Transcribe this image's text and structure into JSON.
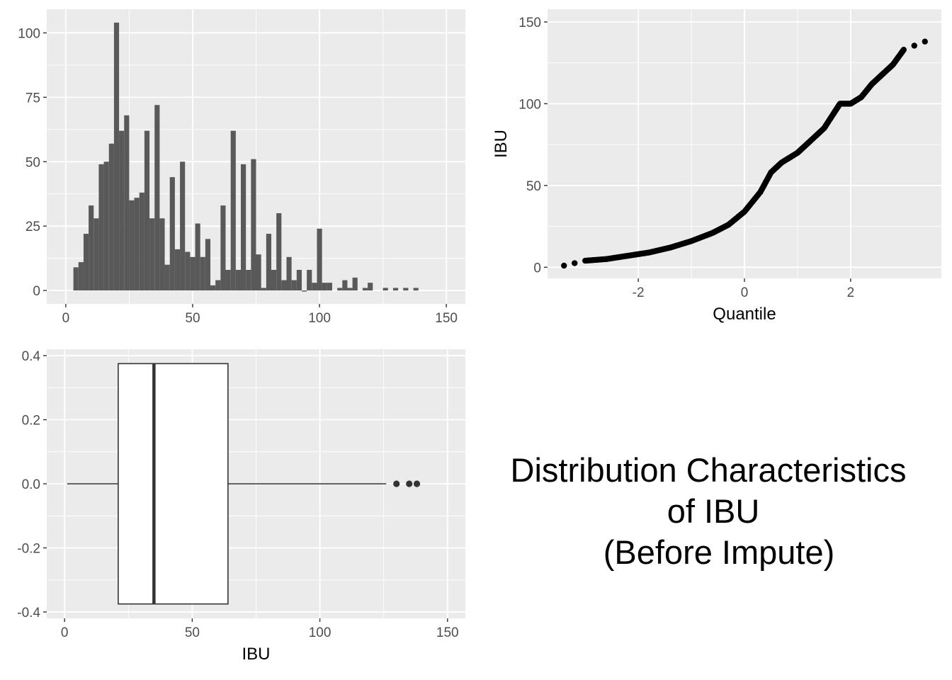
{
  "title_lines": [
    "Distribution Characteristics",
    "of IBU",
    "(Before Impute)"
  ],
  "colors": {
    "panel_bg": "#ebebeb",
    "grid": "#ffffff",
    "bar": "#595959",
    "point": "#000000",
    "tick_text": "#4d4d4d"
  },
  "chart_data": [
    {
      "type": "bar",
      "subtype": "histogram",
      "xlabel": "",
      "ylabel": "",
      "xlim": [
        -7.5,
        157.5
      ],
      "ylim": [
        -5.2,
        109.2
      ],
      "xticks": [
        0,
        50,
        100,
        150
      ],
      "yticks": [
        0,
        25,
        50,
        75,
        100
      ],
      "bin_width": 2,
      "bins": [
        {
          "x": 4,
          "count": 9
        },
        {
          "x": 6,
          "count": 11
        },
        {
          "x": 8,
          "count": 22
        },
        {
          "x": 10,
          "count": 33
        },
        {
          "x": 12,
          "count": 28
        },
        {
          "x": 14,
          "count": 49
        },
        {
          "x": 16,
          "count": 50
        },
        {
          "x": 18,
          "count": 57
        },
        {
          "x": 20,
          "count": 104
        },
        {
          "x": 22,
          "count": 62
        },
        {
          "x": 24,
          "count": 68
        },
        {
          "x": 26,
          "count": 35
        },
        {
          "x": 28,
          "count": 36
        },
        {
          "x": 30,
          "count": 38
        },
        {
          "x": 32,
          "count": 62
        },
        {
          "x": 34,
          "count": 28
        },
        {
          "x": 36,
          "count": 72
        },
        {
          "x": 38,
          "count": 28
        },
        {
          "x": 40,
          "count": 10
        },
        {
          "x": 42,
          "count": 44
        },
        {
          "x": 44,
          "count": 16
        },
        {
          "x": 46,
          "count": 50
        },
        {
          "x": 48,
          "count": 15
        },
        {
          "x": 50,
          "count": 13
        },
        {
          "x": 52,
          "count": 26
        },
        {
          "x": 54,
          "count": 13
        },
        {
          "x": 56,
          "count": 20
        },
        {
          "x": 58,
          "count": 2
        },
        {
          "x": 60,
          "count": 4
        },
        {
          "x": 62,
          "count": 33
        },
        {
          "x": 64,
          "count": 8
        },
        {
          "x": 66,
          "count": 62
        },
        {
          "x": 68,
          "count": 8
        },
        {
          "x": 70,
          "count": 49
        },
        {
          "x": 72,
          "count": 8
        },
        {
          "x": 74,
          "count": 51
        },
        {
          "x": 76,
          "count": 14
        },
        {
          "x": 78,
          "count": 1
        },
        {
          "x": 80,
          "count": 22
        },
        {
          "x": 82,
          "count": 8
        },
        {
          "x": 84,
          "count": 30
        },
        {
          "x": 86,
          "count": 4
        },
        {
          "x": 88,
          "count": 13
        },
        {
          "x": 90,
          "count": 4
        },
        {
          "x": 92,
          "count": 8
        },
        {
          "x": 94,
          "count": 0
        },
        {
          "x": 96,
          "count": 8
        },
        {
          "x": 98,
          "count": 3
        },
        {
          "x": 100,
          "count": 24
        },
        {
          "x": 102,
          "count": 3
        },
        {
          "x": 104,
          "count": 3
        },
        {
          "x": 108,
          "count": 1
        },
        {
          "x": 110,
          "count": 4
        },
        {
          "x": 112,
          "count": 1
        },
        {
          "x": 114,
          "count": 5
        },
        {
          "x": 118,
          "count": 1
        },
        {
          "x": 120,
          "count": 3
        },
        {
          "x": 126,
          "count": 1
        },
        {
          "x": 130,
          "count": 1
        },
        {
          "x": 134,
          "count": 1
        },
        {
          "x": 138,
          "count": 1
        }
      ]
    },
    {
      "type": "scatter",
      "subtype": "qq-plot",
      "xlabel": "Quantile",
      "ylabel": "IBU",
      "xlim": [
        -3.71,
        3.71
      ],
      "ylim": [
        -6.8,
        157.8
      ],
      "xticks": [
        -2,
        0,
        2
      ],
      "yticks": [
        0,
        50,
        100,
        150
      ],
      "curve": [
        [
          -3.4,
          1
        ],
        [
          -3.0,
          4
        ],
        [
          -2.6,
          5
        ],
        [
          -2.2,
          7
        ],
        [
          -1.8,
          9
        ],
        [
          -1.4,
          12
        ],
        [
          -1.0,
          16
        ],
        [
          -0.6,
          21
        ],
        [
          -0.3,
          26
        ],
        [
          0.0,
          34
        ],
        [
          0.3,
          46
        ],
        [
          0.5,
          58
        ],
        [
          0.7,
          64
        ],
        [
          1.0,
          70
        ],
        [
          1.2,
          76
        ],
        [
          1.5,
          85
        ],
        [
          1.7,
          95
        ],
        [
          1.8,
          100
        ],
        [
          2.0,
          100
        ],
        [
          2.2,
          104
        ],
        [
          2.4,
          112
        ],
        [
          2.6,
          118
        ],
        [
          2.8,
          124
        ],
        [
          3.0,
          133
        ],
        [
          3.4,
          138
        ]
      ]
    },
    {
      "type": "box",
      "xlabel": "IBU",
      "ylabel": "",
      "xlim": [
        -7,
        157
      ],
      "ylim": [
        -0.42,
        0.42
      ],
      "xticks": [
        0,
        50,
        100,
        150
      ],
      "yticks": [
        -0.4,
        -0.2,
        0.0,
        0.2,
        0.4
      ],
      "tick_labels_y": [
        "-0.4",
        "-0.2",
        "0.0",
        "0.2",
        "0.4"
      ],
      "whisker_low": 1,
      "q1": 21,
      "median": 35,
      "q3": 64,
      "whisker_high": 126,
      "outliers": [
        130,
        135,
        138
      ],
      "box_half_height": 0.375
    }
  ]
}
